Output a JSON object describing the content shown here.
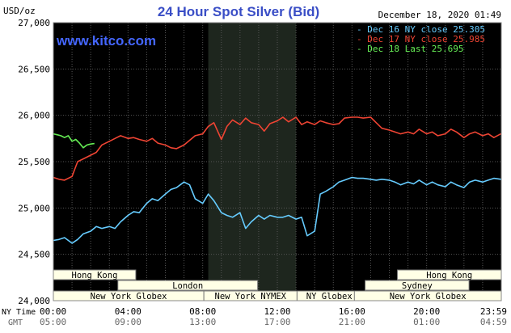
{
  "chart_data": {
    "type": "line",
    "title": "24 Hour Spot Silver (Bid)",
    "ylabel": "USD/oz",
    "date_label": "December 18, 2020 01:49",
    "source": "www.kitco.com",
    "ylim": [
      24.0,
      27.0
    ],
    "yticks": [
      "27,000",
      "26,500",
      "26,000",
      "25,500",
      "25,000",
      "24,500",
      "24,000"
    ],
    "xlim": [
      0,
      24
    ],
    "x_row_label": "NY Time",
    "gmt_row_label": "GMT",
    "xticks": [
      {
        "ny": "00:00",
        "gmt": "05:00"
      },
      {
        "ny": "04:00",
        "gmt": "09:00"
      },
      {
        "ny": "08:00",
        "gmt": "13:00"
      },
      {
        "ny": "12:00",
        "gmt": "17:00"
      },
      {
        "ny": "16:00",
        "gmt": "21:00"
      },
      {
        "ny": "20:00",
        "gmt": "01:00"
      },
      {
        "ny": "23:59",
        "gmt": "04:59"
      }
    ],
    "legend": [
      {
        "label": "Dec 16 NY close 25.305",
        "color": "#66ccff"
      },
      {
        "label": "Dec 17 NY close 25.985",
        "color": "#ee4433"
      },
      {
        "label": "Dec 18 Last 25.695",
        "color": "#66ee55"
      }
    ],
    "sessions": [
      {
        "name": "Hong Kong",
        "start": 0,
        "end": 11.5,
        "lane": 0
      },
      {
        "name": "London",
        "start": 9.0,
        "end": 28.5,
        "lane": 1
      },
      {
        "name": "New York Globex",
        "start": 0,
        "end": 21.0,
        "lane": 2
      },
      {
        "name": "New York NYMEX",
        "start": 21.0,
        "end": 34.0,
        "lane": 2
      },
      {
        "name": "NY Globex",
        "start": 34.0,
        "end": 43.0,
        "lane": 2
      },
      {
        "name": "Hong Kong",
        "start": 48.0,
        "end": 62.5,
        "lane": 0
      },
      {
        "name": "Sydney",
        "start": 43.5,
        "end": 58.0,
        "lane": 1
      },
      {
        "name": "New York Globex",
        "start": 42.0,
        "end": 62.5,
        "lane": 2
      }
    ],
    "nymex_shade": [
      8.3,
      13.0
    ],
    "series": [
      {
        "name": "Dec 16",
        "color": "#66ccff",
        "x": [
          0.0,
          0.3,
          0.6,
          1.0,
          1.3,
          1.6,
          2.0,
          2.3,
          2.6,
          3.0,
          3.3,
          3.6,
          4.0,
          4.3,
          4.6,
          5.0,
          5.3,
          5.6,
          6.0,
          6.3,
          6.6,
          7.0,
          7.3,
          7.6,
          8.0,
          8.3,
          8.6,
          9.0,
          9.3,
          9.6,
          10.0,
          10.3,
          10.6,
          11.0,
          11.3,
          11.6,
          12.0,
          12.3,
          12.6,
          13.0,
          13.3,
          13.6,
          14.0,
          14.3,
          14.6,
          15.0,
          15.3,
          15.6,
          16.0,
          16.3,
          16.6,
          17.0,
          17.3,
          17.6,
          18.0,
          18.3,
          18.6,
          19.0,
          19.3,
          19.6,
          20.0,
          20.3,
          20.6,
          21.0,
          21.3,
          21.6,
          22.0,
          22.3,
          22.6,
          23.0,
          23.3,
          23.6,
          23.98
        ],
        "values": [
          24.65,
          24.66,
          24.68,
          24.62,
          24.66,
          24.72,
          24.75,
          24.8,
          24.78,
          24.8,
          24.78,
          24.85,
          24.92,
          24.96,
          24.95,
          25.05,
          25.1,
          25.08,
          25.15,
          25.2,
          25.22,
          25.28,
          25.25,
          25.1,
          25.05,
          25.15,
          25.08,
          24.95,
          24.92,
          24.9,
          24.95,
          24.78,
          24.85,
          24.92,
          24.88,
          24.92,
          24.9,
          24.9,
          24.92,
          24.88,
          24.9,
          24.7,
          24.75,
          25.15,
          25.18,
          25.23,
          25.28,
          25.3,
          25.33,
          25.32,
          25.32,
          25.31,
          25.3,
          25.31,
          25.3,
          25.28,
          25.25,
          25.28,
          25.26,
          25.3,
          25.25,
          25.28,
          25.25,
          25.23,
          25.28,
          25.25,
          25.22,
          25.28,
          25.3,
          25.28,
          25.3,
          25.32,
          25.31
        ]
      },
      {
        "name": "Dec 17",
        "color": "#ee4433",
        "x": [
          0.0,
          0.3,
          0.6,
          1.0,
          1.3,
          1.6,
          2.0,
          2.3,
          2.6,
          3.0,
          3.3,
          3.6,
          4.0,
          4.3,
          4.6,
          5.0,
          5.3,
          5.6,
          6.0,
          6.3,
          6.6,
          7.0,
          7.3,
          7.6,
          8.0,
          8.3,
          8.6,
          9.0,
          9.3,
          9.6,
          10.0,
          10.3,
          10.6,
          11.0,
          11.3,
          11.6,
          12.0,
          12.3,
          12.6,
          13.0,
          13.3,
          13.6,
          14.0,
          14.3,
          14.6,
          15.0,
          15.3,
          15.6,
          16.0,
          16.3,
          16.6,
          17.0,
          17.3,
          17.6,
          18.0,
          18.3,
          18.6,
          19.0,
          19.3,
          19.6,
          20.0,
          20.3,
          20.6,
          21.0,
          21.3,
          21.6,
          22.0,
          22.3,
          22.6,
          23.0,
          23.3,
          23.6,
          23.98
        ],
        "values": [
          25.33,
          25.31,
          25.3,
          25.34,
          25.5,
          25.53,
          25.57,
          25.6,
          25.68,
          25.72,
          25.75,
          25.78,
          25.75,
          25.76,
          25.74,
          25.72,
          25.75,
          25.7,
          25.68,
          25.65,
          25.64,
          25.68,
          25.73,
          25.78,
          25.8,
          25.88,
          25.92,
          25.74,
          25.88,
          25.95,
          25.9,
          25.97,
          25.92,
          25.9,
          25.83,
          25.91,
          25.94,
          25.98,
          25.93,
          25.98,
          25.9,
          25.93,
          25.9,
          25.94,
          25.92,
          25.9,
          25.91,
          25.97,
          25.98,
          25.98,
          25.97,
          25.98,
          25.92,
          25.86,
          25.84,
          25.82,
          25.8,
          25.82,
          25.8,
          25.85,
          25.8,
          25.82,
          25.78,
          25.8,
          25.85,
          25.82,
          25.76,
          25.8,
          25.82,
          25.78,
          25.8,
          25.76,
          25.8
        ]
      },
      {
        "name": "Dec 18",
        "color": "#66ee55",
        "x": [
          0.0,
          0.2,
          0.4,
          0.6,
          0.8,
          1.0,
          1.2,
          1.4,
          1.6,
          1.8,
          2.0,
          2.2
        ],
        "values": [
          25.8,
          25.79,
          25.78,
          25.76,
          25.78,
          25.72,
          25.74,
          25.7,
          25.65,
          25.68,
          25.69,
          25.695
        ]
      }
    ]
  }
}
